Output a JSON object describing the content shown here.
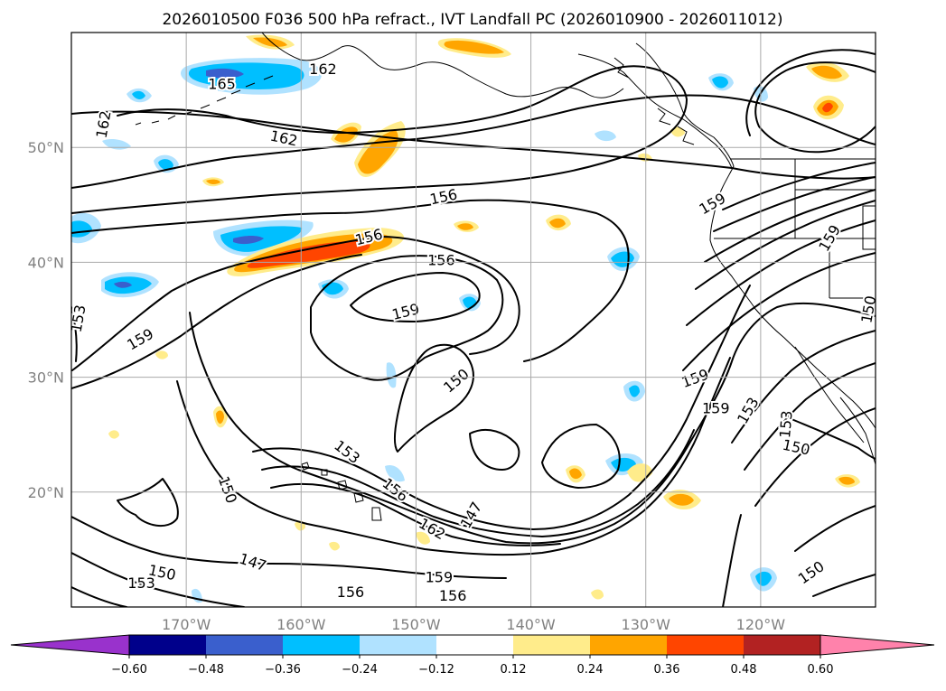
{
  "title": "2026010500 F036 500 hPa refract., IVT Landfall PC (2026010900 - 2026011012)",
  "map": {
    "lon_range": [
      -180,
      -110
    ],
    "lat_range": [
      10,
      60
    ],
    "lon_ticks": [
      {
        "lon": -170,
        "label": "170°W"
      },
      {
        "lon": -160,
        "label": "160°W"
      },
      {
        "lon": -150,
        "label": "150°W"
      },
      {
        "lon": -140,
        "label": "140°W"
      },
      {
        "lon": -130,
        "label": "130°W"
      },
      {
        "lon": -120,
        "label": "120°W"
      }
    ],
    "lat_ticks": [
      {
        "lat": 20,
        "label": "20°N"
      },
      {
        "lat": 30,
        "label": "30°N"
      },
      {
        "lat": 40,
        "label": "40°N"
      },
      {
        "lat": 50,
        "label": "50°N"
      }
    ],
    "grid": true,
    "contour_labels": [
      {
        "text": "162",
        "lon": -158.1,
        "lat": 56.8,
        "rot": 0
      },
      {
        "text": "165",
        "lon": -166.9,
        "lat": 55.5,
        "rot": 0
      },
      {
        "text": "162",
        "lon": -177.2,
        "lat": 52.0,
        "rot": -80
      },
      {
        "text": "162",
        "lon": -161.5,
        "lat": 50.8,
        "rot": 12
      },
      {
        "text": "156",
        "lon": -147.6,
        "lat": 45.7,
        "rot": -12
      },
      {
        "text": "156",
        "lon": -154.1,
        "lat": 42.2,
        "rot": -14
      },
      {
        "text": "156",
        "lon": -147.8,
        "lat": 40.2,
        "rot": 0
      },
      {
        "text": "159",
        "lon": -150.9,
        "lat": 35.7,
        "rot": -14
      },
      {
        "text": "159",
        "lon": -174.0,
        "lat": 33.3,
        "rot": -30
      },
      {
        "text": "153",
        "lon": -179.4,
        "lat": 35.1,
        "rot": -80
      },
      {
        "text": "150",
        "lon": -146.5,
        "lat": 29.7,
        "rot": -40
      },
      {
        "text": "153",
        "lon": -156.0,
        "lat": 23.5,
        "rot": 38
      },
      {
        "text": "156",
        "lon": -151.8,
        "lat": 20.2,
        "rot": 38
      },
      {
        "text": "162",
        "lon": -148.6,
        "lat": 16.8,
        "rot": 30
      },
      {
        "text": "147",
        "lon": -145.2,
        "lat": 18.0,
        "rot": -60
      },
      {
        "text": "150",
        "lon": -166.4,
        "lat": 20.2,
        "rot": 70
      },
      {
        "text": "147",
        "lon": -164.2,
        "lat": 13.9,
        "rot": 18
      },
      {
        "text": "150",
        "lon": -172.1,
        "lat": 13.0,
        "rot": 12
      },
      {
        "text": "153",
        "lon": -173.9,
        "lat": 12.1,
        "rot": 0
      },
      {
        "text": "159",
        "lon": -148.0,
        "lat": 12.6,
        "rot": 0
      },
      {
        "text": "156",
        "lon": -155.7,
        "lat": 11.3,
        "rot": 0
      },
      {
        "text": "156",
        "lon": -146.8,
        "lat": 11.0,
        "rot": 0
      },
      {
        "text": "159",
        "lon": -124.2,
        "lat": 45.1,
        "rot": -30
      },
      {
        "text": "159",
        "lon": -114.0,
        "lat": 42.1,
        "rot": -60
      },
      {
        "text": "159",
        "lon": -125.7,
        "lat": 29.9,
        "rot": -20
      },
      {
        "text": "159",
        "lon": -123.9,
        "lat": 27.3,
        "rot": 0
      },
      {
        "text": "153",
        "lon": -121.1,
        "lat": 27.1,
        "rot": -60
      },
      {
        "text": "153",
        "lon": -117.8,
        "lat": 25.9,
        "rot": -85
      },
      {
        "text": "150",
        "lon": -116.9,
        "lat": 23.9,
        "rot": 12
      },
      {
        "text": "150",
        "lon": -115.6,
        "lat": 13.0,
        "rot": -35
      },
      {
        "text": "150",
        "lon": -110.6,
        "lat": 35.9,
        "rot": -80
      }
    ]
  },
  "colorbar": {
    "ticks": [
      "−0.60",
      "−0.48",
      "−0.36",
      "−0.24",
      "−0.12",
      "0.12",
      "0.24",
      "0.36",
      "0.48",
      "0.60"
    ],
    "colors": [
      "#9932cc",
      "#00008b",
      "#3a5fcd",
      "#00bfff",
      "#b0e2ff",
      "#ffffff",
      "#ffec8b",
      "#ffa500",
      "#ff4500",
      "#b22222",
      "#ff82ab"
    ]
  }
}
